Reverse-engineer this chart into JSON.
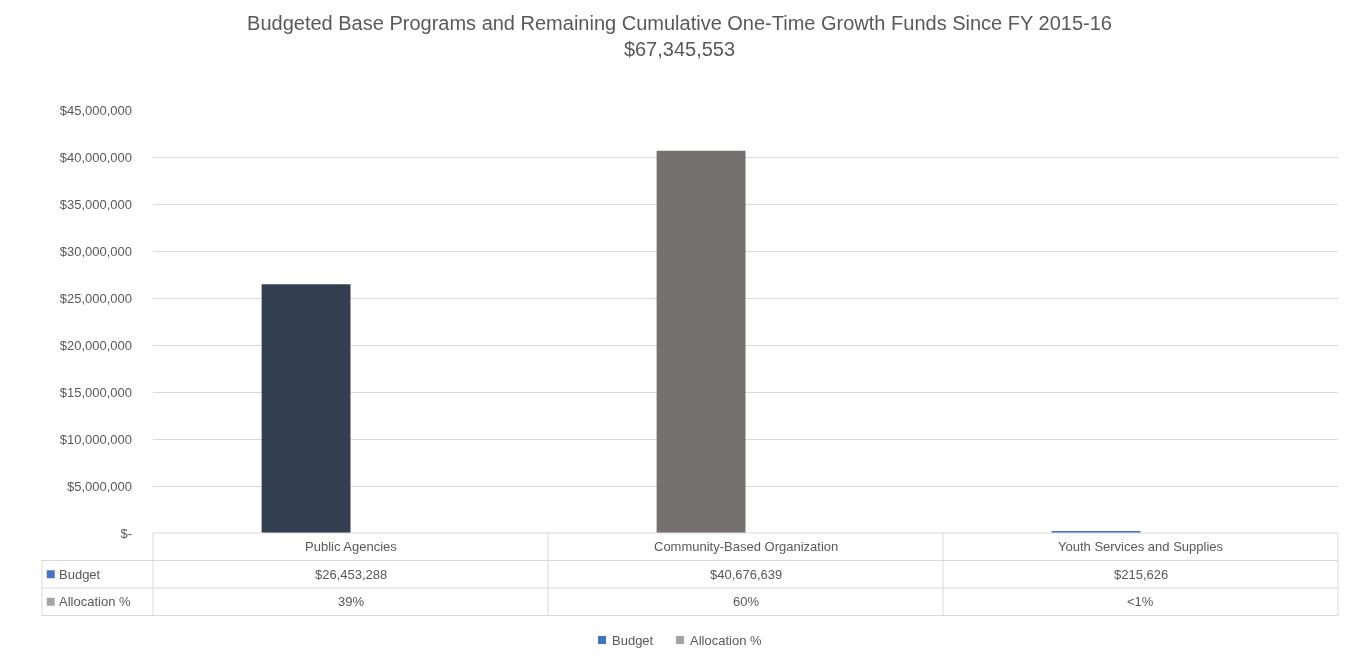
{
  "chart_data": {
    "type": "bar",
    "title": "Budgeted Base Programs and Remaining Cumulative One-Time Growth Funds Since FY 2015-16",
    "subtitle": "$67,345,553",
    "categories": [
      "Public Agencies",
      "Community-Based Organization",
      "Youth Services and Supplies"
    ],
    "series": [
      {
        "name": "Budget",
        "color": "#4472c4",
        "colors": [
          "#333f50",
          "#767171",
          "#4472c4"
        ],
        "values": [
          26453288,
          40676639,
          215626
        ],
        "value_labels": [
          "$26,453,288",
          "$40,676,639",
          "$215,626"
        ]
      },
      {
        "name": "Allocation %",
        "color": "#a5a5a5",
        "values": [
          0.39,
          0.6,
          0
        ],
        "value_labels": [
          "39%",
          "60%",
          "<1%"
        ]
      }
    ],
    "ylim": [
      0,
      45000000
    ],
    "yticks": [
      {
        "value": 0,
        "label": "$-"
      },
      {
        "value": 5000000,
        "label": "$5,000,000"
      },
      {
        "value": 10000000,
        "label": "$10,000,000"
      },
      {
        "value": 15000000,
        "label": "$15,000,000"
      },
      {
        "value": 20000000,
        "label": "$20,000,000"
      },
      {
        "value": 25000000,
        "label": "$25,000,000"
      },
      {
        "value": 30000000,
        "label": "$30,000,000"
      },
      {
        "value": 35000000,
        "label": "$35,000,000"
      },
      {
        "value": 40000000,
        "label": "$40,000,000"
      },
      {
        "value": 45000000,
        "label": "$45,000,000"
      }
    ],
    "grid": "y",
    "legend": "bottom"
  }
}
